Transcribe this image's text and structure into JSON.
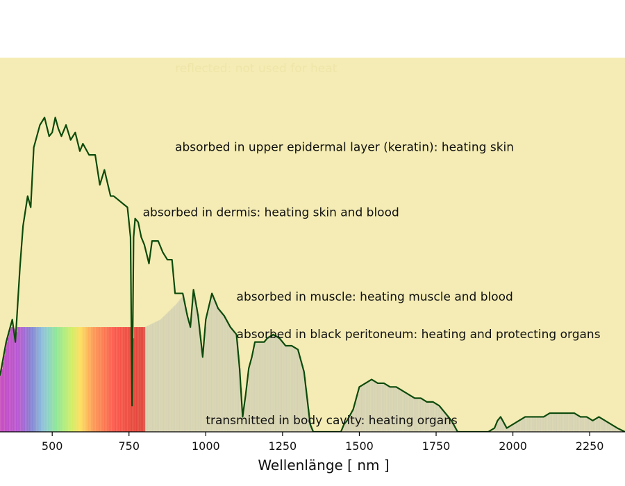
{
  "chart_data": {
    "type": "area",
    "xlabel": "Wellenlänge  [ nm ]",
    "xlim": [
      330,
      2365
    ],
    "xticks": [
      500,
      750,
      1000,
      1250,
      1500,
      1750,
      2000,
      2250
    ],
    "grid": false,
    "colors": {
      "reflected": "#000000",
      "epidermis": "#e0a860",
      "dermis": "#934012",
      "muscle": "#e62a24",
      "peritoneum": "#45160f",
      "transmitted": "#f4ecb4",
      "solar_line": "#0c4a0c"
    },
    "layers": [
      {
        "name": "reflected: not used for heat",
        "x": [
          330,
          345,
          360,
          380,
          400,
          430,
          450,
          500,
          550,
          600,
          650,
          700,
          800,
          900,
          1000,
          1100,
          1200,
          1300,
          1400,
          1500,
          1600,
          1700,
          1800,
          1900,
          2000,
          2100,
          2200,
          2300,
          2365
        ],
        "bottom": [
          0.95,
          0.94,
          0.94,
          0.94,
          0.93,
          0.9,
          0.86,
          0.8,
          0.78,
          0.72,
          0.75,
          0.78,
          0.89,
          0.92,
          0.92,
          0.89,
          0.9,
          0.92,
          0.94,
          0.97,
          0.95,
          0.92,
          0.93,
          0.96,
          0.98,
          0.98,
          0.99,
          1.0,
          1.0
        ]
      },
      {
        "name": "absorbed in upper epidermal layer (keratin): heating skin",
        "x": [
          330,
          350,
          380,
          400,
          450,
          500,
          550,
          600,
          650,
          700,
          750,
          800,
          900,
          1000,
          1100,
          1200,
          1300,
          1400,
          1500,
          1600,
          1700,
          1800,
          1900,
          2000,
          2100,
          2200,
          2300,
          2365
        ],
        "bottom": [
          0.25,
          0.33,
          0.4,
          0.45,
          0.52,
          0.58,
          0.62,
          0.64,
          0.65,
          0.65,
          0.65,
          0.65,
          0.64,
          0.63,
          0.62,
          0.61,
          0.61,
          0.61,
          0.61,
          0.61,
          0.62,
          0.6,
          0.6,
          0.6,
          0.6,
          0.6,
          0.6,
          0.6
        ]
      },
      {
        "name": "absorbed in dermis: heating skin and blood",
        "x": [
          330,
          350,
          400,
          450,
          500,
          550,
          600,
          650,
          700,
          750,
          800,
          850,
          900,
          950,
          1000,
          1100,
          1200,
          1250,
          1300,
          1400,
          1450,
          1500,
          1550,
          1600,
          1650,
          1700,
          1750,
          1800,
          1850,
          1900,
          1925,
          1950,
          1975,
          2000,
          2050,
          2100,
          2150,
          2200,
          2250,
          2300,
          2365
        ],
        "bottom": [
          0.0,
          0.0,
          0.0,
          0.0,
          0.0,
          0.0,
          0.0,
          0.0,
          0.0,
          0.0,
          0.0,
          0.02,
          0.06,
          0.11,
          0.16,
          0.23,
          0.36,
          0.44,
          0.5,
          0.48,
          0.48,
          0.5,
          0.56,
          0.63,
          0.65,
          0.63,
          0.56,
          0.45,
          0.33,
          0.28,
          0.34,
          0.42,
          0.47,
          0.47,
          0.52,
          0.55,
          0.56,
          0.55,
          0.52,
          0.47,
          0.4
        ]
      },
      {
        "name": "absorbed in muscle: heating muscle and blood",
        "x": [
          330,
          700,
          800,
          850,
          900,
          950,
          1000,
          1100,
          1150,
          1200,
          1250,
          1280,
          1300,
          1350,
          1400,
          1450,
          1475,
          1500,
          1550,
          1600,
          1650,
          1700,
          1750,
          1800,
          1850,
          1900,
          1950,
          2000,
          2050,
          2100,
          2150,
          2200,
          2250,
          2300,
          2365
        ],
        "bottom": [
          0.0,
          0.0,
          0.0,
          0.0,
          0.01,
          0.03,
          0.06,
          0.12,
          0.17,
          0.22,
          0.27,
          0.31,
          0.3,
          0.2,
          0.1,
          0.04,
          0.02,
          0.05,
          0.16,
          0.3,
          0.32,
          0.3,
          0.22,
          0.11,
          0.03,
          0.0,
          0.0,
          0.0,
          0.02,
          0.06,
          0.09,
          0.09,
          0.07,
          0.04,
          0.02
        ]
      },
      {
        "name": "absorbed in black peritoneum: heating and protecting organs",
        "x": [
          330,
          800,
          850,
          900,
          950,
          1000,
          1100,
          1150,
          1200,
          1250,
          1280,
          1300,
          1330,
          1360,
          1400,
          1450,
          1500,
          1550,
          1600,
          1650,
          1700,
          1750,
          1800,
          1850,
          1900,
          2000,
          2050,
          2100,
          2150,
          2200,
          2250,
          2300,
          2365
        ],
        "bottom": [
          0.0,
          0.0,
          0.0,
          0.0,
          0.0,
          0.0,
          0.03,
          0.06,
          0.1,
          0.14,
          0.15,
          0.14,
          0.08,
          0.02,
          0.0,
          0.0,
          0.0,
          0.07,
          0.18,
          0.23,
          0.21,
          0.14,
          0.04,
          0.0,
          0.0,
          0.0,
          0.0,
          0.02,
          0.04,
          0.04,
          0.03,
          0.01,
          0.0
        ]
      },
      {
        "name": "transmitted in body cavity: heating organs",
        "x": [
          330,
          2365
        ],
        "bottom": [
          0.0,
          0.0
        ]
      }
    ],
    "solar_spectrum": {
      "x": [
        330,
        350,
        370,
        380,
        395,
        405,
        420,
        430,
        440,
        460,
        475,
        490,
        500,
        510,
        520,
        530,
        545,
        560,
        575,
        590,
        600,
        620,
        640,
        655,
        670,
        690,
        700,
        715,
        730,
        745,
        755,
        760,
        765,
        770,
        780,
        790,
        800,
        815,
        825,
        845,
        860,
        875,
        890,
        900,
        910,
        925,
        940,
        950,
        960,
        975,
        990,
        1000,
        1020,
        1040,
        1060,
        1080,
        1100,
        1110,
        1120,
        1130,
        1140,
        1150,
        1160,
        1170,
        1180,
        1190,
        1200,
        1220,
        1240,
        1260,
        1280,
        1300,
        1320,
        1340,
        1350,
        1360,
        1380,
        1400,
        1420,
        1440,
        1450,
        1460,
        1480,
        1500,
        1520,
        1540,
        1560,
        1580,
        1600,
        1620,
        1640,
        1660,
        1680,
        1700,
        1720,
        1740,
        1760,
        1780,
        1800,
        1820,
        1840,
        1860,
        1880,
        1900,
        1920,
        1940,
        1950,
        1960,
        1980,
        2000,
        2020,
        2040,
        2060,
        2080,
        2100,
        2120,
        2140,
        2160,
        2180,
        2200,
        2220,
        2240,
        2260,
        2280,
        2300,
        2320,
        2340,
        2365
      ],
      "y": [
        0.15,
        0.24,
        0.3,
        0.24,
        0.44,
        0.55,
        0.63,
        0.6,
        0.76,
        0.82,
        0.84,
        0.79,
        0.8,
        0.84,
        0.81,
        0.79,
        0.82,
        0.78,
        0.8,
        0.75,
        0.77,
        0.74,
        0.74,
        0.66,
        0.7,
        0.63,
        0.63,
        0.62,
        0.61,
        0.6,
        0.52,
        0.07,
        0.52,
        0.57,
        0.56,
        0.52,
        0.5,
        0.45,
        0.51,
        0.51,
        0.48,
        0.46,
        0.46,
        0.37,
        0.37,
        0.37,
        0.31,
        0.28,
        0.38,
        0.31,
        0.2,
        0.3,
        0.37,
        0.33,
        0.31,
        0.28,
        0.26,
        0.17,
        0.04,
        0.1,
        0.17,
        0.2,
        0.24,
        0.24,
        0.24,
        0.24,
        0.25,
        0.26,
        0.25,
        0.23,
        0.23,
        0.22,
        0.16,
        0.02,
        0.0,
        0.0,
        0.0,
        0.0,
        0.0,
        0.0,
        0.02,
        0.03,
        0.06,
        0.12,
        0.13,
        0.14,
        0.13,
        0.13,
        0.12,
        0.12,
        0.11,
        0.1,
        0.09,
        0.09,
        0.08,
        0.08,
        0.07,
        0.05,
        0.03,
        0.0,
        0.0,
        0.0,
        0.0,
        0.0,
        0.0,
        0.01,
        0.03,
        0.04,
        0.01,
        0.02,
        0.03,
        0.04,
        0.04,
        0.04,
        0.04,
        0.05,
        0.05,
        0.05,
        0.05,
        0.05,
        0.04,
        0.04,
        0.03,
        0.04,
        0.03,
        0.02,
        0.01,
        0.0
      ]
    },
    "labels": [
      {
        "text": "reflected: not used for heat",
        "x": 900,
        "y": 0.97,
        "color": "#efe5a8"
      },
      {
        "text": "absorbed in upper epidermal layer (keratin): heating skin",
        "x": 900,
        "y": 0.76,
        "color": "#111111"
      },
      {
        "text": "absorbed in dermis: heating skin and blood",
        "x": 795,
        "y": 0.585,
        "color": "#111111"
      },
      {
        "text": "absorbed in muscle: heating muscle and blood",
        "x": 1100,
        "y": 0.36,
        "color": "#111111"
      },
      {
        "text": "absorbed in black peritoneum: heating and protecting organs",
        "x": 1100,
        "y": 0.26,
        "color": "#111111"
      },
      {
        "text": "transmitted in body cavity: heating organs",
        "x": 1000,
        "y": 0.03,
        "color": "#111111"
      }
    ]
  }
}
